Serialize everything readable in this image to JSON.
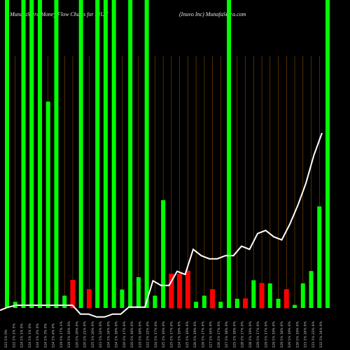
{
  "header": {
    "left_title": "MunafaSutra  Money Flow  Charts for INUV",
    "right_title": "(Inuvo  Inc) MunafaSutra.com"
  },
  "colors": {
    "background": "#000000",
    "up_bar": "#00ff00",
    "down_bar": "#ff0000",
    "price_line": "#ffffff",
    "separator": "#8a4b00"
  },
  "chart_data": {
    "type": "bar",
    "title": "MunafaSutra  Money Flow  Charts for INUV",
    "subtitle": "(Inuvo  Inc) MunafaSutra.com",
    "ylim": [
      0,
      100
    ],
    "categories": [
      "123 1% 0%",
      "122 1% 1% 5%",
      "124 1% 1% 0%",
      "124 1% 1% 0%",
      "124 1% 2% 0%",
      "124 1% 3% 0%",
      "124 1% 4% 0%",
      "119 1% 17% 1%",
      "119 1% 16% 0%",
      "120 1% 20% 0%",
      "120 1% 21% 0%",
      "125 1% 20% 0%",
      "123 1% 22% 0%",
      "124 1% 24% 0%",
      "124 1% 18% 0%",
      "120 1% 17% 0%",
      "120 1% 18% 0%",
      "119 1% 18% 0%",
      "122 1% 22% 0%",
      "124 1% 17% 0%",
      "125 1% 16% 0%",
      "125 1% 17% 0%",
      "124 1% 19% 0%",
      "125 1% 16% 0%",
      "126 1% 19% 0%",
      "126 1% 17% 0%",
      "127 1% 16% 0%",
      "126 1% 17% 0%",
      "127 1% 18% 0%",
      "125 1% 18% 0%",
      "128 1% 17% 0%",
      "128 1% 19% 0%",
      "129 1% 17% 0%",
      "129 1% 17% 0%",
      "129 1% 19% 0%",
      "129 1% 18% 0%",
      "129 1% 19% 0%",
      "130 1% 19% 0%",
      "131 1% 24% 0%",
      "131 1% 23% 0%",
      "132 1% 24% 0%"
    ],
    "flow": [
      [
        "up",
        100
      ],
      [
        "up",
        2
      ],
      [
        "up",
        100
      ],
      [
        "up",
        100
      ],
      [
        "up",
        100
      ],
      [
        "up",
        67
      ],
      [
        "up",
        100
      ],
      [
        "up",
        4
      ],
      [
        "down",
        9
      ],
      [
        "up",
        100
      ],
      [
        "down",
        6
      ],
      [
        "up",
        100
      ],
      [
        "up",
        100
      ],
      [
        "up",
        100
      ],
      [
        "up",
        6
      ],
      [
        "up",
        100
      ],
      [
        "up",
        10
      ],
      [
        "up",
        100
      ],
      [
        "up",
        4
      ],
      [
        "up",
        35
      ],
      [
        "down",
        11
      ],
      [
        "down",
        11
      ],
      [
        "down",
        12
      ],
      [
        "up",
        2
      ],
      [
        "up",
        4
      ],
      [
        "down",
        6
      ],
      [
        "up",
        2
      ],
      [
        "up",
        100
      ],
      [
        "up",
        3
      ],
      [
        "down",
        3
      ],
      [
        "up",
        9
      ],
      [
        "down",
        8
      ],
      [
        "up",
        8
      ],
      [
        "up",
        3
      ],
      [
        "down",
        6
      ],
      [
        "up",
        1
      ],
      [
        "up",
        8
      ],
      [
        "up",
        12
      ],
      [
        "up",
        33
      ],
      [
        "up",
        100
      ]
    ],
    "price": [
      0.6,
      1.6,
      2.2,
      2.2,
      2.2,
      2.2,
      2.2,
      2.2,
      2.2,
      2.2,
      -0.6,
      -0.6,
      -1.5,
      -1.5,
      -0.6,
      -0.6,
      1.6,
      1.6,
      1.6,
      10,
      8.5,
      8.5,
      13,
      12,
      20,
      18,
      17,
      17,
      18,
      18,
      21,
      20,
      25,
      26,
      24,
      23,
      28,
      34,
      41,
      50,
      57
    ],
    "price_max": 57,
    "price_min": -2
  }
}
